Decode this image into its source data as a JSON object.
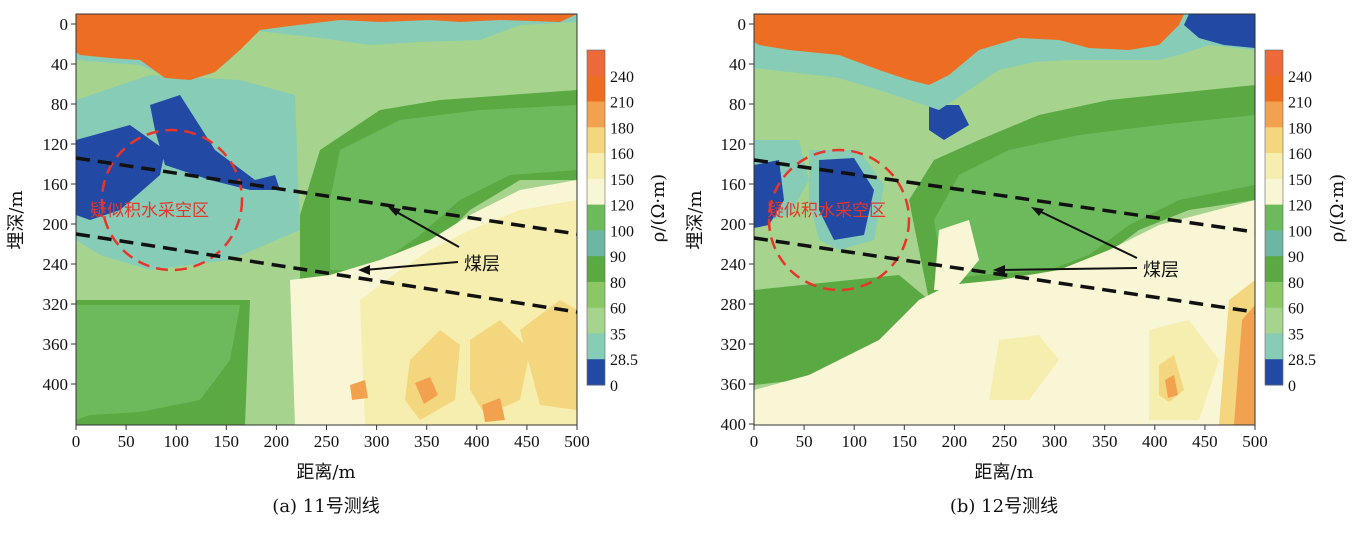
{
  "chart_data": [
    {
      "type": "heatmap",
      "caption": "(a) 11号测线",
      "xlabel": "距离/m",
      "ylabel": "埋深/m",
      "colorbar_label": "ρ/(Ω·m)",
      "xlim": [
        0,
        500
      ],
      "x_ticks": [
        0,
        50,
        100,
        150,
        200,
        250,
        300,
        350,
        400,
        450,
        500
      ],
      "y_ticks": [
        0,
        40,
        80,
        120,
        160,
        200,
        240,
        320,
        360,
        400
      ],
      "colorbar_ticks": [
        "240",
        "210",
        "180",
        "160",
        "150",
        "120",
        "100",
        "90",
        "80",
        "60",
        "35",
        "28.5",
        "0"
      ],
      "annotations": {
        "goaf": "疑似积水采空区",
        "coal": "煤层"
      }
    },
    {
      "type": "heatmap",
      "caption": "(b) 12号测线",
      "xlabel": "距离/m",
      "ylabel": "埋深/m",
      "colorbar_label": "ρ/(Ω·m)",
      "xlim": [
        0,
        500
      ],
      "ylim": [
        0,
        400
      ],
      "x_ticks": [
        0,
        50,
        100,
        150,
        200,
        250,
        300,
        350,
        400,
        450,
        500
      ],
      "y_ticks": [
        0,
        40,
        80,
        120,
        160,
        200,
        240,
        280,
        320,
        360,
        400
      ],
      "colorbar_ticks": [
        "240",
        "210",
        "180",
        "160",
        "150",
        "120",
        "100",
        "90",
        "80",
        "60",
        "35",
        "28.5",
        "0"
      ],
      "annotations": {
        "goaf": "疑似积水采空区",
        "coal": "煤层"
      }
    }
  ],
  "colors": {
    "c240": "#ec6a3a",
    "c210": "#ed6e22",
    "c180": "#f2a24e",
    "c160": "#f3d67e",
    "c150": "#f6eeae",
    "c120": "#f9f6d6",
    "c100": "#6dba5c",
    "c90": "#6bb7a4",
    "c80": "#5aa943",
    "c60": "#8cc766",
    "c35": "#a6d48e",
    "c28": "#86ccb7",
    "c0": "#2249a4",
    "annotation_red": "#e8342a"
  }
}
